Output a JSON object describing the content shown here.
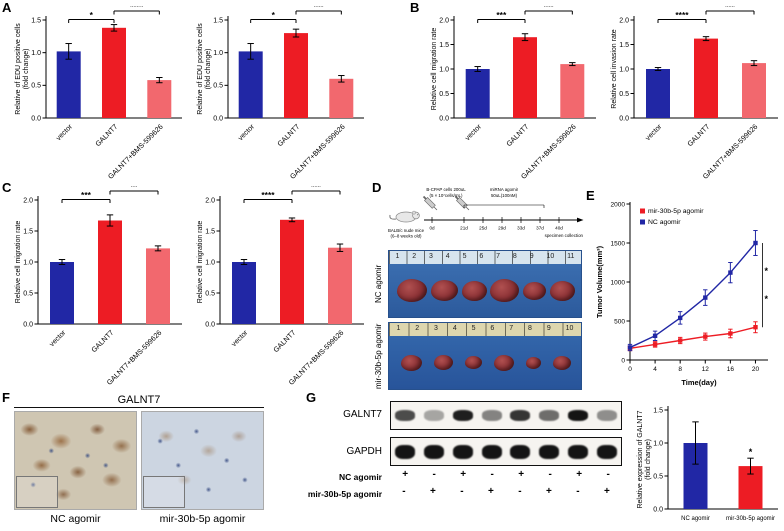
{
  "panels": {
    "a": "A",
    "b": "B",
    "c": "C",
    "d": "D",
    "e": "E",
    "f": "F",
    "g": "G"
  },
  "chart_data": [
    {
      "panel": "A",
      "slot": "left",
      "type": "bar",
      "categories": [
        "vector",
        "GALNT7",
        "GALNT7+BMS-599626"
      ],
      "values": [
        1.02,
        1.38,
        0.58
      ],
      "errors": [
        0.12,
        0.05,
        0.04
      ],
      "colors": [
        "#2127a5",
        "#ed1c24",
        "#f2686e"
      ],
      "ylabel": [
        "Relative of EDU positive cells",
        "(fold change)"
      ],
      "ylim": [
        0,
        1.5
      ],
      "yticks": [
        0,
        0.5,
        1,
        1.5
      ],
      "ytick_decimals": 1,
      "rotate_labels": true,
      "sig": [
        {
          "from": 0,
          "to": 1,
          "label": "*",
          "level": 1
        },
        {
          "from": 1,
          "to": 2,
          "label": "****",
          "level": 0
        }
      ]
    },
    {
      "panel": "A",
      "slot": "right",
      "type": "bar",
      "categories": [
        "vector",
        "GALNT7",
        "GALNT7+BMS-599626"
      ],
      "values": [
        1.02,
        1.3,
        0.6
      ],
      "errors": [
        0.12,
        0.06,
        0.05
      ],
      "colors": [
        "#2127a5",
        "#ed1c24",
        "#f2686e"
      ],
      "ylabel": [
        "Relative of EDU positive cells",
        "(fold change)"
      ],
      "ylim": [
        0,
        1.5
      ],
      "yticks": [
        0,
        0.5,
        1,
        1.5
      ],
      "ytick_decimals": 1,
      "rotate_labels": true,
      "sig": [
        {
          "from": 0,
          "to": 1,
          "label": "*",
          "level": 1
        },
        {
          "from": 1,
          "to": 2,
          "label": "***",
          "level": 0
        }
      ]
    },
    {
      "panel": "B",
      "slot": "left",
      "type": "bar",
      "categories": [
        "vector",
        "GALNT7",
        "GALNT7+BMS-599626"
      ],
      "values": [
        1,
        1.65,
        1.1
      ],
      "errors": [
        0.05,
        0.07,
        0.03
      ],
      "colors": [
        "#2127a5",
        "#ed1c24",
        "#f2686e"
      ],
      "ylabel": [
        "Relative cell migration rate"
      ],
      "ylim": [
        0,
        2
      ],
      "yticks": [
        0,
        0.5,
        1,
        1.5,
        2
      ],
      "ytick_decimals": 1,
      "rotate_labels": true,
      "sig": [
        {
          "from": 0,
          "to": 1,
          "label": "***",
          "level": 1
        },
        {
          "from": 1,
          "to": 2,
          "label": "***",
          "level": 0
        }
      ]
    },
    {
      "panel": "B",
      "slot": "right",
      "type": "bar",
      "categories": [
        "vector",
        "GALNT7",
        "GALNT7+BMS-599626"
      ],
      "values": [
        1,
        1.62,
        1.12
      ],
      "errors": [
        0.03,
        0.04,
        0.05
      ],
      "colors": [
        "#2127a5",
        "#ed1c24",
        "#f2686e"
      ],
      "ylabel": [
        "Relative cell invasion rate"
      ],
      "ylim": [
        0,
        2
      ],
      "yticks": [
        0,
        0.5,
        1,
        1.5,
        2
      ],
      "ytick_decimals": 1,
      "rotate_labels": true,
      "sig": [
        {
          "from": 0,
          "to": 1,
          "label": "****",
          "level": 1
        },
        {
          "from": 1,
          "to": 2,
          "label": "***",
          "level": 0
        }
      ]
    },
    {
      "panel": "C",
      "slot": "left",
      "type": "bar",
      "categories": [
        "vector",
        "GALNT7",
        "GALNT7+BMS-599626"
      ],
      "values": [
        1,
        1.67,
        1.22
      ],
      "errors": [
        0.04,
        0.09,
        0.04
      ],
      "colors": [
        "#2127a5",
        "#ed1c24",
        "#f2686e"
      ],
      "ylabel": [
        "Relative cell migration rate"
      ],
      "ylim": [
        0,
        2
      ],
      "yticks": [
        0,
        0.5,
        1,
        1.5,
        2
      ],
      "ytick_decimals": 1,
      "rotate_labels": true,
      "sig": [
        {
          "from": 0,
          "to": 1,
          "label": "***",
          "level": 1
        },
        {
          "from": 1,
          "to": 2,
          "label": "**",
          "level": 0
        }
      ]
    },
    {
      "panel": "C",
      "slot": "right",
      "type": "bar",
      "categories": [
        "vector",
        "GALNT7",
        "GALNT7+BMS-599626"
      ],
      "values": [
        1,
        1.68,
        1.23
      ],
      "errors": [
        0.04,
        0.03,
        0.06
      ],
      "colors": [
        "#2127a5",
        "#ed1c24",
        "#f2686e"
      ],
      "ylabel": [
        "Relative cell migration rate"
      ],
      "ylim": [
        0,
        2
      ],
      "yticks": [
        0,
        0.5,
        1,
        1.5,
        2
      ],
      "ytick_decimals": 1,
      "rotate_labels": true,
      "sig": [
        {
          "from": 0,
          "to": 1,
          "label": "****",
          "level": 1
        },
        {
          "from": 1,
          "to": 2,
          "label": "***",
          "level": 0
        }
      ]
    },
    {
      "panel": "E",
      "type": "line",
      "xlabel": "Time(day)",
      "ylabel": [
        "Tumor Volume(mm³)"
      ],
      "xlim": [
        0,
        22
      ],
      "ylim": [
        0,
        2000
      ],
      "xticks": [
        0,
        4,
        8,
        12,
        16,
        20
      ],
      "yticks": [
        0,
        500,
        1000,
        1500,
        2000
      ],
      "x": [
        0,
        4,
        8,
        12,
        16,
        20
      ],
      "series": [
        {
          "name": "mir-30b-5p agomir",
          "color": "#ed1c24",
          "values": [
            150,
            200,
            250,
            300,
            340,
            420
          ],
          "errors": [
            30,
            35,
            40,
            45,
            55,
            70
          ]
        },
        {
          "name": "NC agomir",
          "color": "#2127a5",
          "values": [
            160,
            310,
            540,
            800,
            1120,
            1500
          ],
          "errors": [
            40,
            60,
            80,
            100,
            130,
            160
          ]
        }
      ],
      "sig_labels": [
        "*",
        "*"
      ]
    },
    {
      "panel": "G",
      "slot": "right",
      "type": "bar",
      "categories": [
        "NC agomir",
        "mir-30b-5p agomir"
      ],
      "values": [
        1,
        0.65
      ],
      "errors": [
        0.32,
        0.12
      ],
      "colors": [
        "#2127a5",
        "#ed1c24"
      ],
      "ylabel": [
        "Relative expression of GALNT7",
        "(fold change)"
      ],
      "ylim": [
        0,
        1.5
      ],
      "yticks": [
        0,
        0.5,
        1,
        1.5
      ],
      "ytick_decimals": 1,
      "rotate_labels": false,
      "sig": [
        {
          "from": 1,
          "to": 1,
          "label": "*",
          "level": 0
        }
      ]
    }
  ],
  "panel_d": {
    "schematic": {
      "injection1_line1": "B-CPAP cells 200uL",
      "injection1_line2": "(5 × 10⁷cells/mL)",
      "injection2_line1": "miRNA agomir",
      "injection2_line2": "50uL(100nM)",
      "mouse_line1": "BALB/c nude mice",
      "mouse_line2": "(6–8 weeks old)",
      "timeline_ticks": [
        "0d",
        "21d",
        "25d",
        "29d",
        "33d",
        "37d",
        "40d"
      ],
      "endpoint": "specimen collection"
    },
    "photos": [
      {
        "label": "NC agomir",
        "ruler_numbers": [
          "1",
          "2",
          "3",
          "4",
          "5",
          "6",
          "7",
          "8",
          "9",
          "10",
          "11"
        ],
        "tumor_sizes": [
          30,
          27,
          25,
          29,
          23,
          25
        ]
      },
      {
        "label": "mir-30b-5p agomir",
        "ruler_numbers": [
          "1",
          "2",
          "3",
          "4",
          "5",
          "6",
          "7",
          "8",
          "9",
          "10"
        ],
        "tumor_sizes": [
          21,
          19,
          17,
          20,
          15,
          18
        ]
      }
    ]
  },
  "panel_f": {
    "title": "GALNT7",
    "images": [
      {
        "label": "NC agomir"
      },
      {
        "label": "mir-30b-5p agomir"
      }
    ]
  },
  "panel_g": {
    "blot_rows": [
      {
        "label": "GALNT7",
        "bands": [
          0.75,
          0.35,
          0.95,
          0.5,
          0.85,
          0.6,
          1,
          0.45
        ]
      },
      {
        "label": "GAPDH",
        "bands": [
          1,
          1,
          1,
          1,
          1,
          1,
          1,
          1
        ]
      }
    ],
    "condition_rows": [
      {
        "label": "NC agomir",
        "signs": [
          "+",
          "-",
          "+",
          "-",
          "+",
          "-",
          "+",
          "-"
        ]
      },
      {
        "label": "mir-30b-5p agomir",
        "signs": [
          "-",
          "+",
          "-",
          "+",
          "-",
          "+",
          "-",
          "+"
        ]
      }
    ]
  }
}
